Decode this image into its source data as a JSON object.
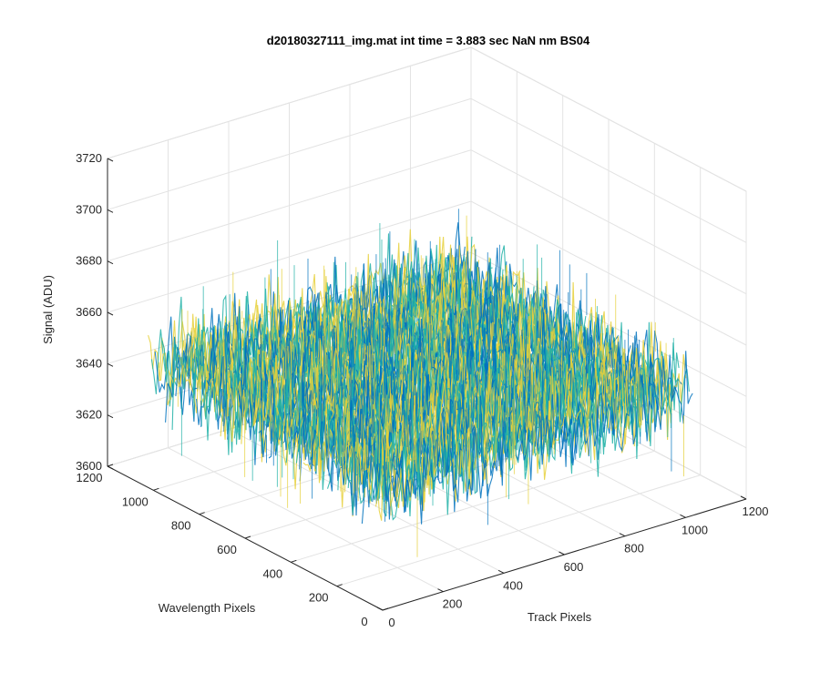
{
  "chart_data": {
    "type": "surface",
    "title": "d20180327111_img.mat int time = 3.883 sec  NaN nm BS04",
    "xlabel": "Track Pixels",
    "ylabel": "Wavelength Pixels",
    "zlabel": "Signal (ADU)",
    "xlim": [
      0,
      1200
    ],
    "ylim": [
      0,
      1200
    ],
    "zlim": [
      3600,
      3720
    ],
    "x_ticks": [
      "0",
      "200",
      "400",
      "600",
      "800",
      "1000",
      "1200"
    ],
    "y_ticks": [
      "0",
      "200",
      "400",
      "600",
      "800",
      "1000",
      "1200"
    ],
    "z_ticks": [
      "3600",
      "3620",
      "3640",
      "3660",
      "3680",
      "3700",
      "3720"
    ],
    "surface": {
      "x_range": [
        1,
        1024
      ],
      "y_range": [
        1,
        1024
      ],
      "mean": 3648,
      "noise_range": [
        3605,
        3700
      ]
    },
    "grid": true,
    "colormap": "parula",
    "colors": {
      "low": "#0072bd",
      "mid": "#21b1a7",
      "high": "#e6d03a"
    }
  }
}
